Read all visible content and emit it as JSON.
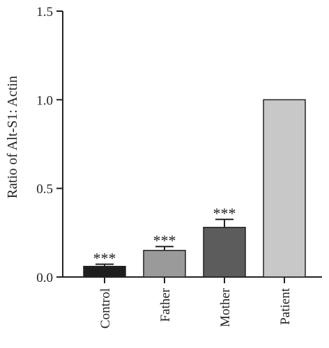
{
  "chart_data": {
    "type": "bar",
    "categories": [
      "Control",
      "Father",
      "Mother",
      "Patient"
    ],
    "values": [
      0.06,
      0.15,
      0.28,
      1.0
    ],
    "errors": [
      0.012,
      0.022,
      0.045,
      0
    ],
    "significance": [
      "***",
      "***",
      "***",
      ""
    ],
    "colors": [
      "#1e1e1e",
      "#9a9a9a",
      "#5c5c5c",
      "#c8c8c8"
    ],
    "ylabel": "Ratio of Alt-S1: Actin",
    "xlabel": "",
    "ylim": [
      0,
      1.5
    ],
    "yticks": [
      0.0,
      0.5,
      1.0,
      1.5
    ],
    "ytick_labels": [
      "0.0",
      "0.5",
      "1.0",
      "1.5"
    ],
    "grid": false,
    "legend": "none"
  }
}
